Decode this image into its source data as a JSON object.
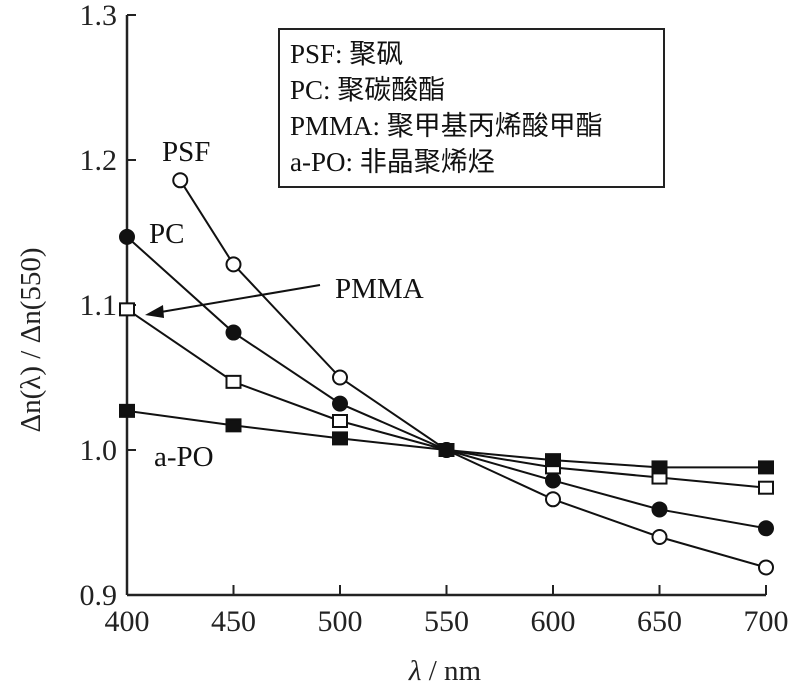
{
  "chart_data": {
    "type": "line",
    "title": "",
    "xlabel": "λ / nm",
    "ylabel": "Δn(λ) / Δn(550)",
    "xlim": [
      400,
      700
    ],
    "ylim": [
      0.9,
      1.3
    ],
    "x_ticks": [
      400,
      450,
      500,
      550,
      600,
      650,
      700
    ],
    "y_ticks": [
      0.9,
      1.0,
      1.1,
      1.2,
      1.3
    ],
    "x_tick_labels": [
      "400",
      "450",
      "500",
      "550",
      "600",
      "650",
      "700"
    ],
    "y_tick_labels": [
      "0.9",
      "1.0",
      "1.1",
      "1.2",
      "1.3"
    ],
    "grid": false,
    "legend_position": "upper center (text box)",
    "series": [
      {
        "name": "PSF",
        "marker": "open-circle",
        "x": [
          425,
          450,
          500,
          550,
          600,
          650,
          700
        ],
        "values": [
          1.186,
          1.128,
          1.05,
          1.0,
          0.966,
          0.94,
          0.919
        ]
      },
      {
        "name": "PC",
        "marker": "filled-circle",
        "x": [
          400,
          450,
          500,
          550,
          600,
          650,
          700
        ],
        "values": [
          1.147,
          1.081,
          1.032,
          1.0,
          0.979,
          0.959,
          0.946
        ]
      },
      {
        "name": "PMMA",
        "marker": "open-square",
        "x": [
          400,
          450,
          500,
          550,
          600,
          650,
          700
        ],
        "values": [
          1.097,
          1.047,
          1.02,
          1.0,
          0.988,
          0.981,
          0.974
        ]
      },
      {
        "name": "a-PO",
        "marker": "filled-square",
        "x": [
          400,
          450,
          500,
          550,
          600,
          650,
          700
        ],
        "values": [
          1.027,
          1.017,
          1.008,
          1.0,
          0.993,
          0.988,
          0.988
        ]
      }
    ],
    "annotations": [
      {
        "text": "PSF",
        "near_series": "PSF"
      },
      {
        "text": "PC",
        "near_series": "PC"
      },
      {
        "text": "PMMA",
        "near_series": "PMMA",
        "arrow_to": [
          400,
          1.097
        ]
      },
      {
        "text": "a-PO",
        "near_series": "a-PO"
      }
    ],
    "legend_entries": [
      "PSF: 聚砜",
      "PC: 聚碳酸酯",
      "PMMA: 聚甲基丙烯酸甲酯",
      "a-PO: 非晶聚烯烃"
    ]
  },
  "legend": {
    "rows": [
      "PSF: 聚砜",
      "PC: 聚碳酸酯",
      "PMMA: 聚甲基丙烯酸甲酯",
      "a-PO: 非晶聚烯烃"
    ]
  },
  "labels": {
    "psf": "PSF",
    "pc": "PC",
    "pmma": "PMMA",
    "apo": "a-PO",
    "xlabel_lambda": "λ",
    "xlabel_unit": " / nm",
    "ylabel": "Δn(λ) / Δn(550)"
  }
}
